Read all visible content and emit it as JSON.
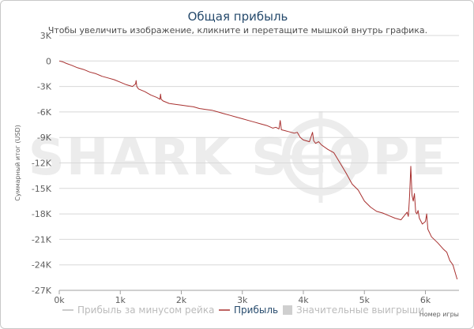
{
  "colors": {
    "profit": "#a8302f",
    "no_rake": "#cfcfcf",
    "grid": "#d8d8d8",
    "axis": "#a0a0a0",
    "watermark": "#ececec",
    "title": "#274b6d",
    "legend_active": "#333333",
    "legend_inactive": "#bbbbbb"
  },
  "chart": {
    "title": "Общая прибыль",
    "subtitle": "Чтобы увеличить изображение, кликните и перетащите мышкой внутрь графика.",
    "watermark": "SHARK SCOPE"
  },
  "legend": {
    "items": [
      {
        "label": "Прибыль за минусом рейка",
        "active": false,
        "icon": "line-swatch-icon"
      },
      {
        "label": "Прибыль",
        "active": true,
        "icon": "line-swatch-icon"
      },
      {
        "label": "Значительные выигрыши",
        "active": false,
        "icon": "square-swatch-icon"
      }
    ]
  },
  "chart_data": {
    "type": "line",
    "title": "Общая прибыль",
    "subtitle": "Чтобы увеличить изображение, кликните и перетащите мышкой внутрь графика.",
    "xlabel": "Номер игры",
    "ylabel": "Суммарный итог (USD)",
    "xlim": [
      0,
      6550
    ],
    "ylim": [
      -27000,
      3000
    ],
    "x_ticks": [
      0,
      1000,
      2000,
      3000,
      4000,
      5000,
      6000
    ],
    "x_tick_labels": [
      "0k",
      "1k",
      "2k",
      "3k",
      "4k",
      "5k",
      "6k"
    ],
    "y_ticks": [
      3000,
      0,
      -3000,
      -6000,
      -9000,
      -12000,
      -15000,
      -18000,
      -21000,
      -24000,
      -27000
    ],
    "y_tick_labels": [
      "3K",
      "0",
      "-3K",
      "-6K",
      "-9K",
      "-12K",
      "-15K",
      "-18K",
      "-21K",
      "-24K",
      "-27K"
    ],
    "grid": true,
    "legend_position": "bottom",
    "series": [
      {
        "name": "Прибыль",
        "color": "#a8302f",
        "x": [
          0,
          60,
          120,
          200,
          300,
          400,
          500,
          600,
          700,
          800,
          900,
          1000,
          1100,
          1200,
          1250,
          1260,
          1270,
          1300,
          1400,
          1500,
          1600,
          1650,
          1660,
          1670,
          1700,
          1800,
          1900,
          2000,
          2100,
          2200,
          2300,
          2400,
          2500,
          2600,
          2700,
          2800,
          2900,
          3000,
          3100,
          3200,
          3300,
          3400,
          3500,
          3550,
          3600,
          3620,
          3640,
          3700,
          3750,
          3800,
          3850,
          3900,
          3950,
          4000,
          4100,
          4150,
          4170,
          4200,
          4250,
          4300,
          4400,
          4500,
          4600,
          4700,
          4800,
          4900,
          5000,
          5100,
          5200,
          5300,
          5400,
          5500,
          5600,
          5700,
          5720,
          5740,
          5760,
          5780,
          5800,
          5820,
          5840,
          5860,
          5880,
          5900,
          5950,
          6000,
          6020,
          6040,
          6100,
          6200,
          6300,
          6350,
          6400,
          6450,
          6500,
          6520
        ],
        "y": [
          0,
          -100,
          -300,
          -500,
          -800,
          -1000,
          -1300,
          -1500,
          -1800,
          -2000,
          -2200,
          -2500,
          -2800,
          -3000,
          -2700,
          -2300,
          -3000,
          -3300,
          -3600,
          -4000,
          -4300,
          -4500,
          -3900,
          -4500,
          -4700,
          -5000,
          -5100,
          -5200,
          -5300,
          -5400,
          -5600,
          -5700,
          -5800,
          -6000,
          -6200,
          -6400,
          -6600,
          -6800,
          -7000,
          -7200,
          -7400,
          -7600,
          -7900,
          -7800,
          -8000,
          -7000,
          -8100,
          -8200,
          -8300,
          -8400,
          -8500,
          -8400,
          -9000,
          -9300,
          -9500,
          -8400,
          -9400,
          -9700,
          -9500,
          -9900,
          -10400,
          -10800,
          -12000,
          -13200,
          -14500,
          -15200,
          -16500,
          -17200,
          -17700,
          -17900,
          -18200,
          -18500,
          -18700,
          -17800,
          -18300,
          -16000,
          -12400,
          -15800,
          -16500,
          -15600,
          -17800,
          -18000,
          -17600,
          -18500,
          -19200,
          -18900,
          -18000,
          -19800,
          -20700,
          -21400,
          -22200,
          -22500,
          -23500,
          -24000,
          -25200,
          -25700
        ]
      }
    ]
  }
}
